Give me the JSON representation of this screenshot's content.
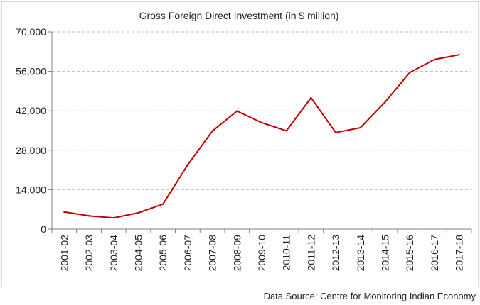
{
  "chart_data": {
    "type": "line",
    "title": "Gross Foreign Direct Investment (in $ million)",
    "xlabel": "",
    "ylabel": "",
    "ylim": [
      0,
      70000
    ],
    "yticks": [
      "0",
      "14,000",
      "28,000",
      "42,000",
      "56,000",
      "70,000"
    ],
    "ytick_values": [
      0,
      14000,
      28000,
      42000,
      56000,
      70000
    ],
    "grid": true,
    "categories": [
      "2001-02",
      "2002-03",
      "2003-04",
      "2004-05",
      "2005-06",
      "2006-07",
      "2007-08",
      "2008-09",
      "2009-10",
      "2010-11",
      "2011-12",
      "2012-13",
      "2013-14",
      "2014-15",
      "2015-16",
      "2016-17",
      "2017-18"
    ],
    "series": [
      {
        "color": "#c00000",
        "values": [
          6100,
          4700,
          4000,
          5800,
          8900,
          22800,
          34800,
          41900,
          37800,
          34900,
          46600,
          34300,
          36000,
          45100,
          55600,
          60200,
          61900
        ]
      }
    ]
  },
  "source_note": "Data Source: Centre for Monitoring Indian Economy"
}
